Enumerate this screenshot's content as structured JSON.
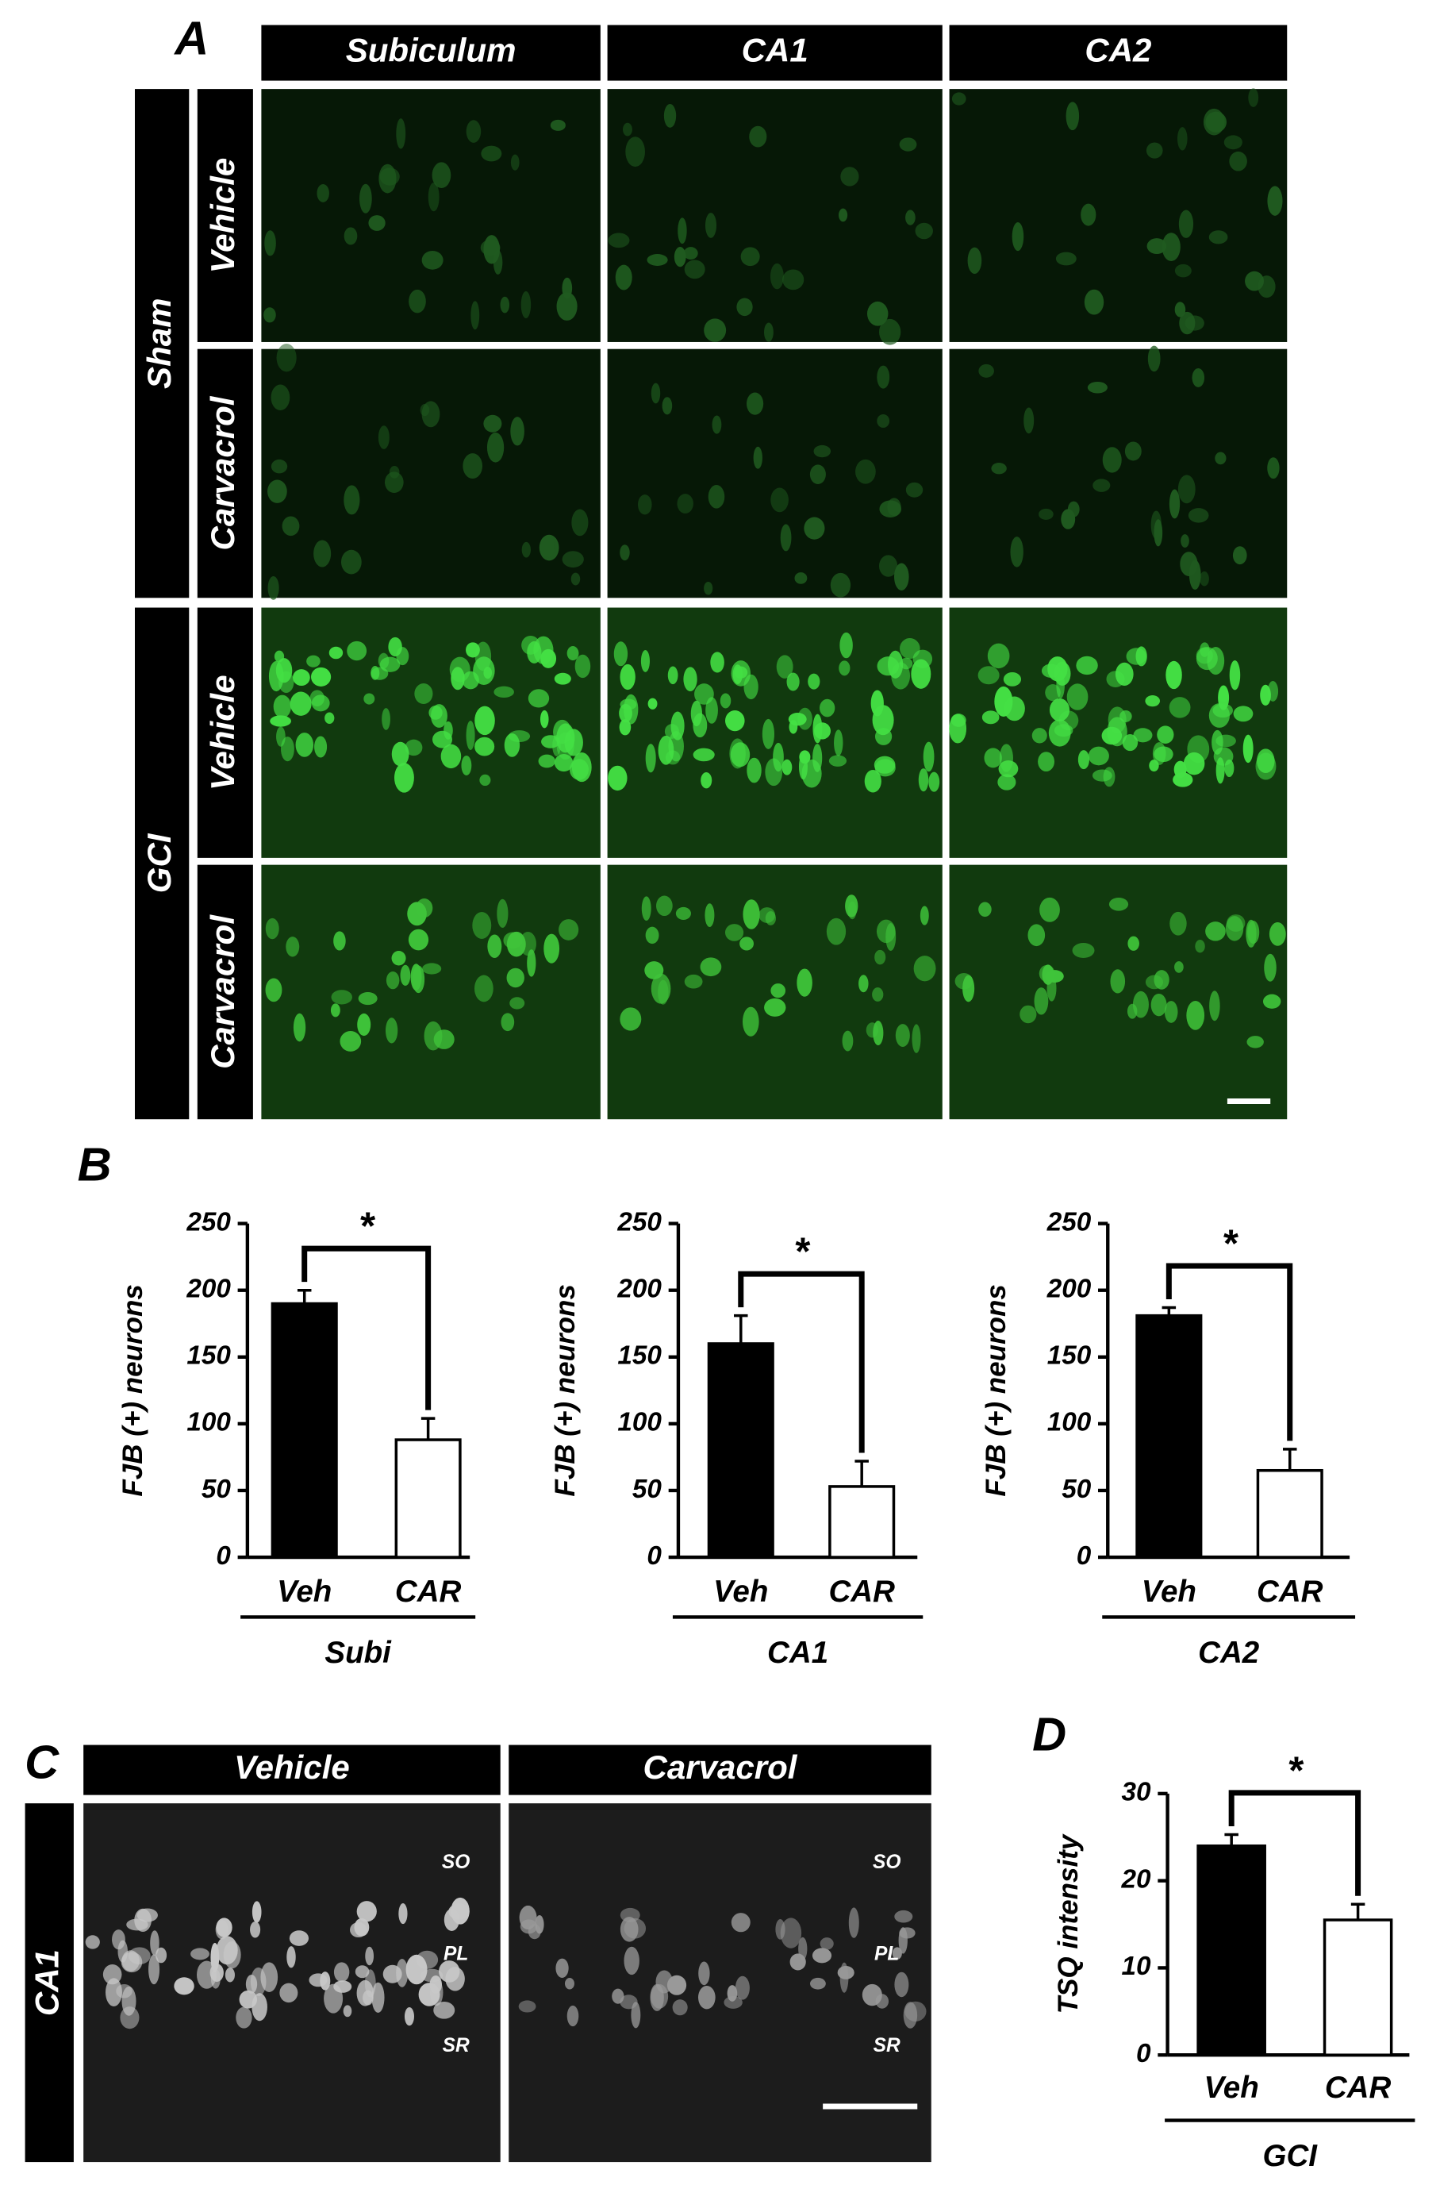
{
  "panel_a": {
    "label": "A",
    "columns": [
      "Subiculum",
      "CA1",
      "CA2"
    ],
    "groups": [
      {
        "name": "Sham",
        "rows": [
          "Vehicle",
          "Carvacrol"
        ]
      },
      {
        "name": "GCI",
        "rows": [
          "Vehicle",
          "Carvacrol"
        ]
      }
    ]
  },
  "panel_b": {
    "label": "B"
  },
  "chart_data": [
    {
      "type": "bar",
      "y_label": "FJB (+) neurons",
      "categories": [
        "Veh",
        "CAR"
      ],
      "group_label": "Subi",
      "values": [
        190,
        88
      ],
      "errors": [
        10,
        16
      ],
      "colors": [
        "#000000",
        "#ffffff"
      ],
      "ylim": [
        0,
        250
      ],
      "yticks": [
        0,
        50,
        100,
        150,
        200,
        250
      ],
      "annotation": "*"
    },
    {
      "type": "bar",
      "y_label": "FJB (+) neurons",
      "categories": [
        "Veh",
        "CAR"
      ],
      "group_label": "CA1",
      "values": [
        160,
        53
      ],
      "errors": [
        21,
        19
      ],
      "colors": [
        "#000000",
        "#ffffff"
      ],
      "ylim": [
        0,
        250
      ],
      "yticks": [
        0,
        50,
        100,
        150,
        200,
        250
      ],
      "annotation": "*"
    },
    {
      "type": "bar",
      "y_label": "FJB (+) neurons",
      "categories": [
        "Veh",
        "CAR"
      ],
      "group_label": "CA2",
      "values": [
        181,
        65
      ],
      "errors": [
        6,
        16
      ],
      "colors": [
        "#000000",
        "#ffffff"
      ],
      "ylim": [
        0,
        250
      ],
      "yticks": [
        0,
        50,
        100,
        150,
        200,
        250
      ],
      "annotation": "*"
    },
    {
      "type": "bar",
      "y_label": "TSQ intensity",
      "categories": [
        "Veh",
        "CAR"
      ],
      "group_label": "GCI",
      "values": [
        24,
        15.5
      ],
      "errors": [
        1.3,
        1.8
      ],
      "colors": [
        "#000000",
        "#ffffff"
      ],
      "ylim": [
        0,
        30
      ],
      "yticks": [
        0,
        10,
        20,
        30
      ],
      "annotation": "*"
    }
  ],
  "panel_c": {
    "label": "C",
    "columns": [
      "Vehicle",
      "Carvacrol"
    ],
    "row": "CA1",
    "layers": [
      "SO",
      "PL",
      "SR"
    ]
  },
  "panel_d": {
    "label": "D"
  }
}
